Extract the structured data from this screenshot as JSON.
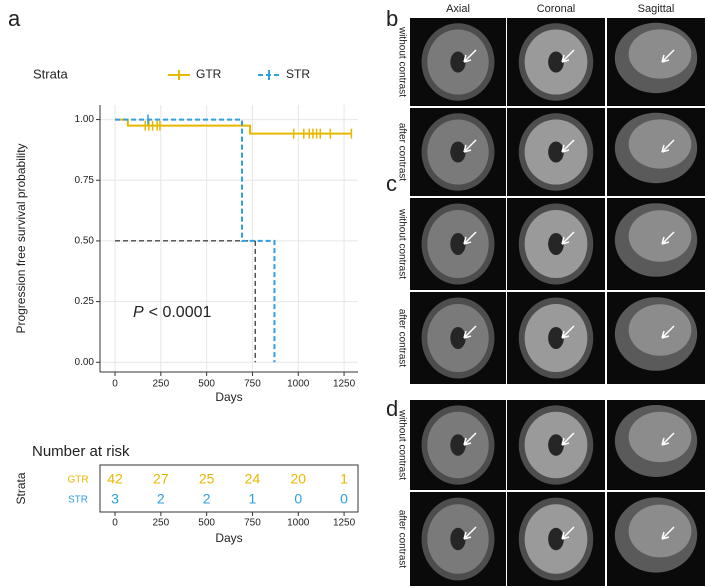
{
  "labels": {
    "a": "a"
  },
  "chart_data": {
    "type": "step",
    "legend_title": "Strata",
    "ylabel": "Progression free survival probability",
    "xlabel": "Days",
    "annotation_symbol": "P",
    "annotation_text": "< 0.0001",
    "xlim": [
      -82,
      1326
    ],
    "xticks": [
      0,
      250,
      500,
      750,
      1000,
      1250
    ],
    "ylim": [
      -0.04,
      1.06
    ],
    "yticks": [
      {
        "value": 0,
        "label": "0.00"
      },
      {
        "value": 0.25,
        "label": "0.25"
      },
      {
        "value": 0.5,
        "label": "0.50"
      },
      {
        "value": 0.75,
        "label": "0.75"
      },
      {
        "value": 1,
        "label": "1.00"
      }
    ],
    "grid": true,
    "median": {
      "x": 765,
      "y": 0.5
    },
    "series": [
      {
        "name": "GTR",
        "color": "#e7b800",
        "dash": false,
        "x": [
          0,
          70,
          737,
          1290
        ],
        "values": [
          1,
          0.975,
          0.942,
          0.942
        ],
        "censor_x": [
          165,
          185,
          205,
          230,
          245,
          975,
          1030,
          1060,
          1080,
          1100,
          1120,
          1175,
          1290
        ],
        "censor_values": [
          0.975,
          0.975,
          0.975,
          0.975,
          0.975,
          0.942,
          0.942,
          0.942,
          0.942,
          0.942,
          0.942,
          0.942,
          0.942
        ]
      },
      {
        "name": "STR",
        "color": "#2e9fdf",
        "dash": true,
        "x": [
          0,
          693,
          870
        ],
        "values": [
          1,
          0.5,
          0
        ],
        "censor_x": [
          180
        ],
        "censor_values": [
          1
        ]
      }
    ]
  },
  "risk_table": {
    "title": "Number at risk",
    "ylabel": "Strata",
    "xlabel": "Days",
    "xticks": [
      0,
      250,
      500,
      750,
      1000,
      1250
    ],
    "rows": [
      {
        "name": "GTR",
        "values": [
          42,
          27,
          25,
          24,
          20,
          1
        ]
      },
      {
        "name": "STR",
        "values": [
          3,
          2,
          2,
          1,
          0,
          0
        ]
      }
    ]
  },
  "mri": {
    "columns": [
      "Axial",
      "Coronal",
      "Sagittal"
    ],
    "panels": [
      {
        "label": "b",
        "rows": [
          "without contrast",
          "after contrast"
        ]
      },
      {
        "label": "c",
        "rows": [
          "without contrast",
          "after contrast"
        ]
      },
      {
        "label": "d",
        "rows": [
          "without contrast",
          "after contrast"
        ]
      }
    ]
  }
}
